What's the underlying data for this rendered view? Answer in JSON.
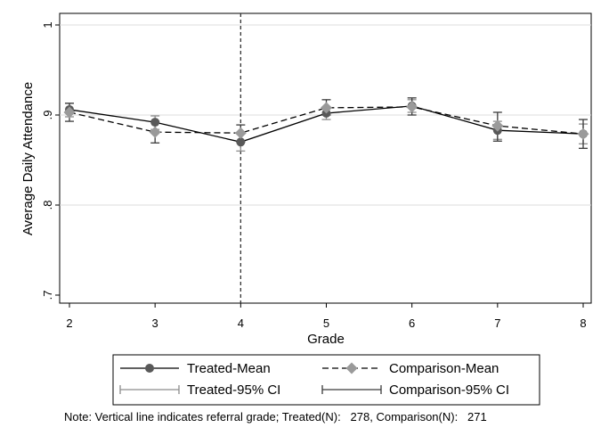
{
  "chart_data": {
    "type": "line",
    "xlabel": "Grade",
    "ylabel": "Average Daily Attendance",
    "x": [
      2,
      3,
      4,
      5,
      6,
      7,
      8
    ],
    "xlim": [
      2,
      8
    ],
    "ylim": [
      0.7,
      1.0
    ],
    "yticks": [
      0.7,
      0.8,
      0.9,
      1.0
    ],
    "ytick_labels": [
      ".7",
      ".8",
      ".9",
      "1"
    ],
    "xtick_labels": [
      "2",
      "3",
      "4",
      "5",
      "6",
      "7",
      "8"
    ],
    "grid": "horizontal",
    "reference_line": {
      "x": 4,
      "style": "dashed"
    },
    "series": [
      {
        "name": "Treated-Mean",
        "values": [
          0.906,
          0.892,
          0.87,
          0.902,
          0.91,
          0.883,
          0.879
        ],
        "ci_lower": [
          0.898,
          0.884,
          0.86,
          0.895,
          0.903,
          0.873,
          0.868
        ],
        "ci_upper": [
          0.913,
          0.899,
          0.88,
          0.909,
          0.917,
          0.893,
          0.89
        ],
        "ci_name": "Treated-95% CI",
        "line_color": "#000000",
        "marker_color": "#595959",
        "ci_color": "#8c8c8c",
        "line_style": "solid",
        "marker": "circle"
      },
      {
        "name": "Comparison-Mean",
        "values": [
          0.903,
          0.881,
          0.88,
          0.908,
          0.909,
          0.888,
          0.879
        ],
        "ci_lower": [
          0.893,
          0.869,
          0.87,
          0.9,
          0.9,
          0.871,
          0.863
        ],
        "ci_upper": [
          0.913,
          0.893,
          0.889,
          0.917,
          0.919,
          0.903,
          0.895
        ],
        "ci_name": "Comparison-95% CI",
        "line_color": "#000000",
        "marker_color": "#9a9a9a",
        "ci_color": "#3a3a3a",
        "line_style": "dashed",
        "marker": "diamond"
      }
    ],
    "legend_placement": "bottom"
  },
  "note": "Note: Vertical line indicates referral grade; Treated(N):   278, Comparison(N):   271"
}
